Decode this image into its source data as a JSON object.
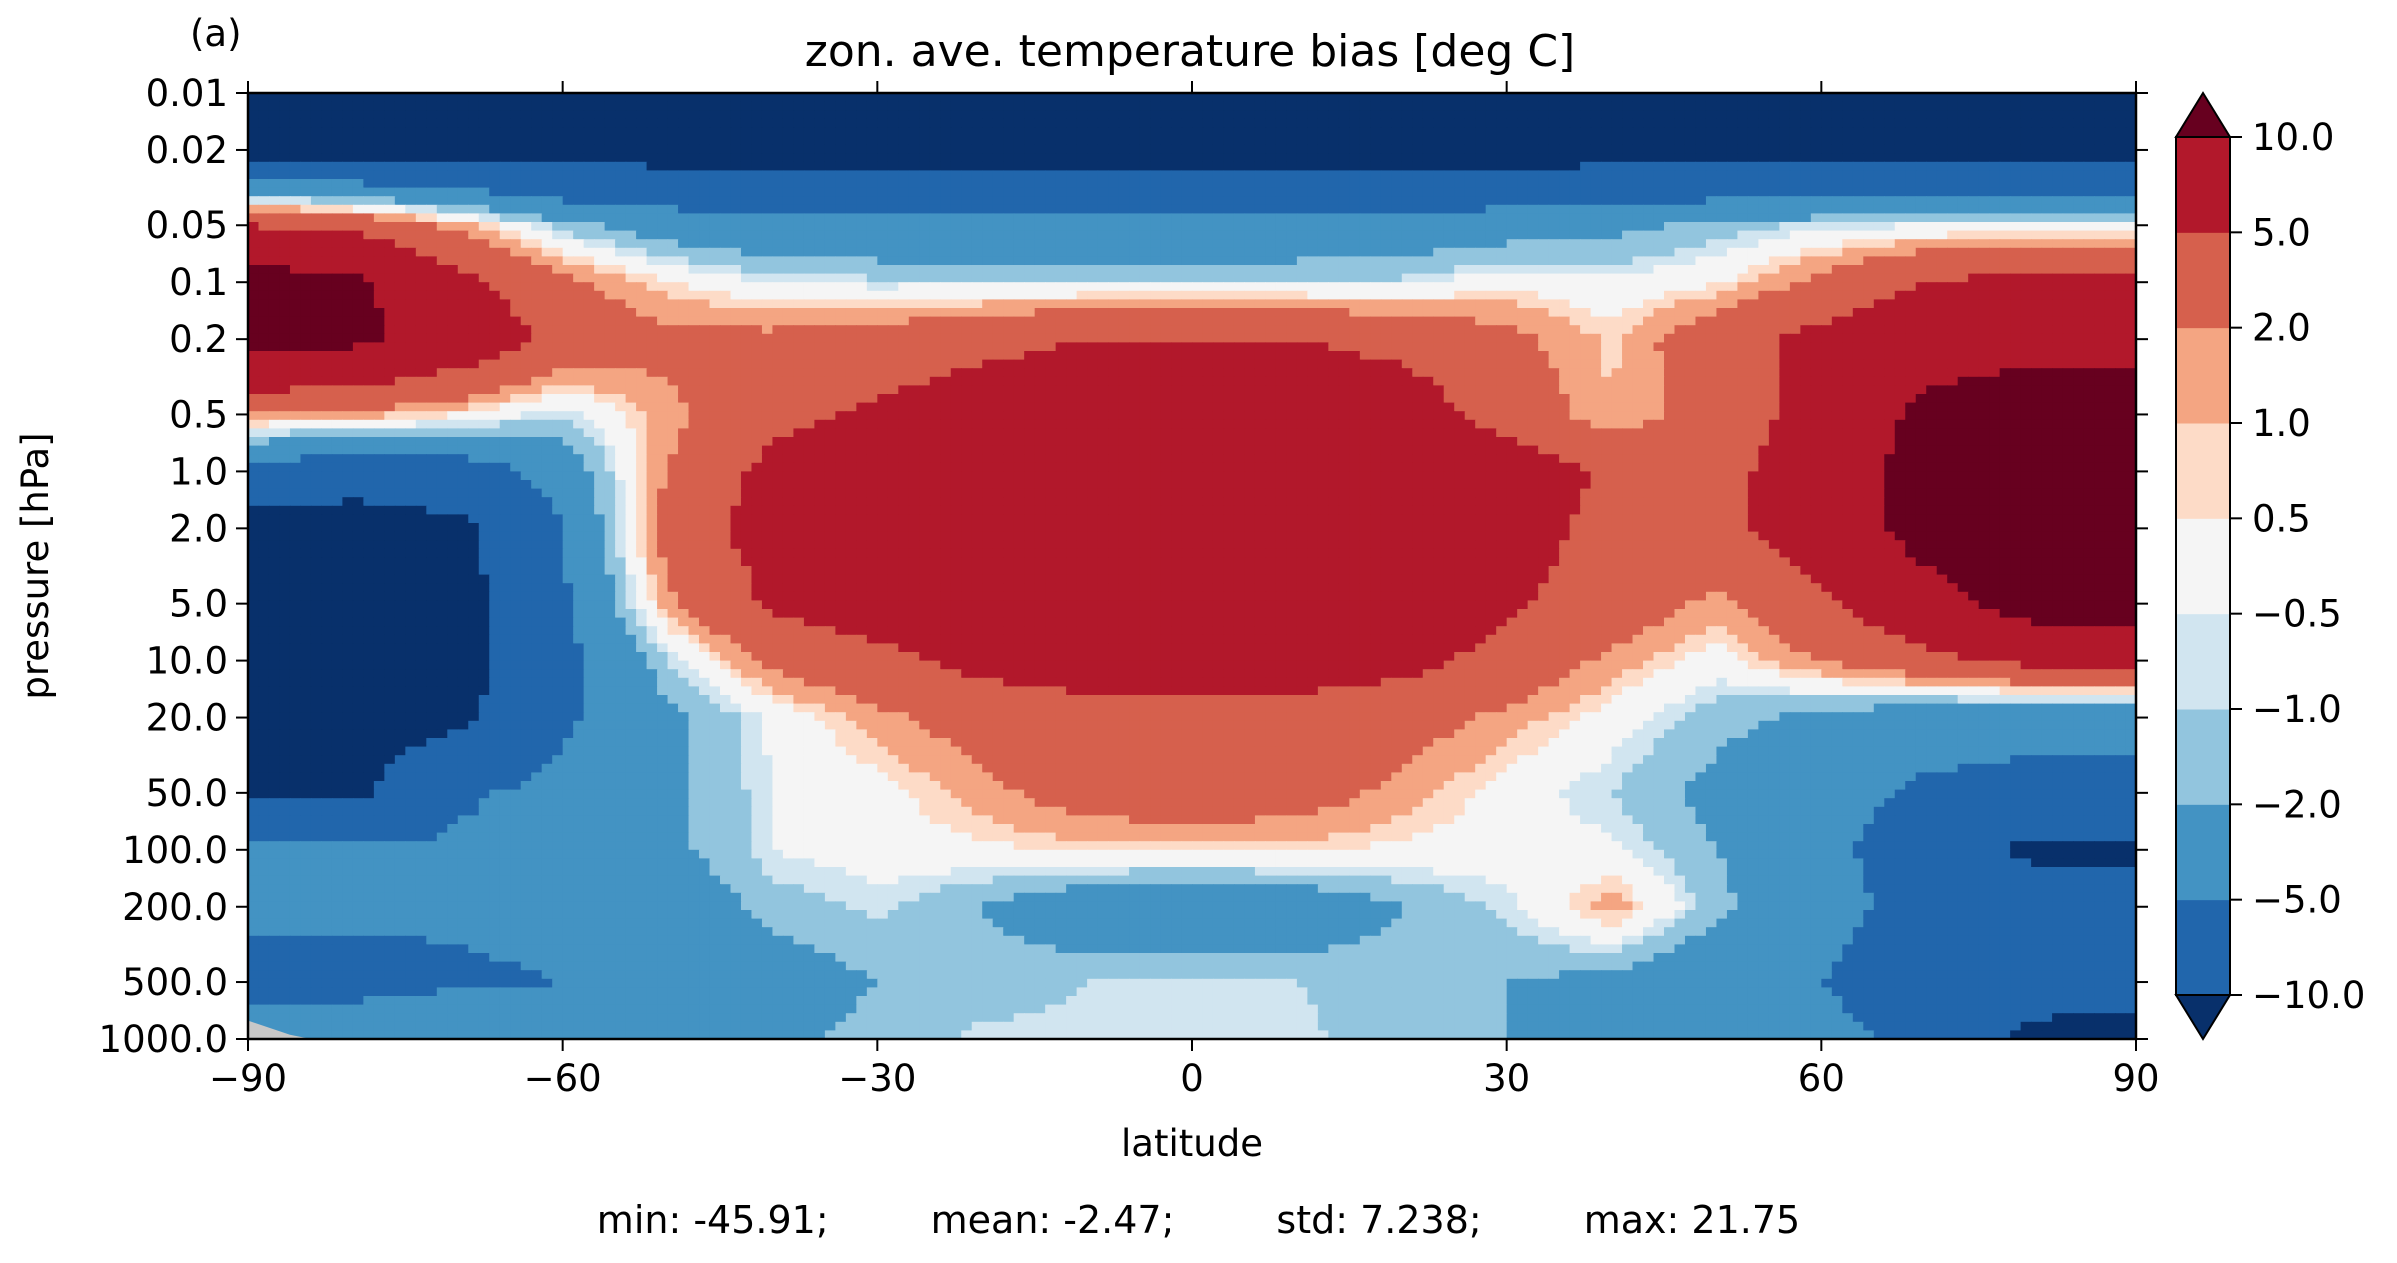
{
  "panel_label": "(a)",
  "stats": {
    "min": "min: -45.91;",
    "mean": "mean: -2.47;",
    "std": "std: 7.238;",
    "max": "max: 21.75"
  },
  "chart_data": {
    "type": "heatmap",
    "subtype": "filled-contour",
    "title": "zon. ave. temperature bias [deg C]",
    "xlabel": "latitude",
    "ylabel": "pressure [hPa]",
    "xlim": [
      -90,
      90
    ],
    "ylim": [
      1000.0,
      0.01
    ],
    "yscale": "log",
    "x_ticks": [
      "−90",
      "−60",
      "−30",
      "0",
      "30",
      "60",
      "90"
    ],
    "x_tick_values": [
      -90,
      -60,
      -30,
      0,
      30,
      60,
      90
    ],
    "y_ticks": [
      "0.01",
      "0.02",
      "0.05",
      "0.1",
      "0.2",
      "0.5",
      "1.0",
      "2.0",
      "5.0",
      "10.0",
      "20.0",
      "50.0",
      "100.0",
      "200.0",
      "500.0",
      "1000.0"
    ],
    "y_tick_values": [
      0.01,
      0.02,
      0.05,
      0.1,
      0.2,
      0.5,
      1.0,
      2.0,
      5.0,
      10.0,
      20.0,
      50.0,
      100.0,
      200.0,
      500.0,
      1000.0
    ],
    "colorbar": {
      "levels": [
        -10.0,
        -5.0,
        -2.0,
        -1.0,
        -0.5,
        0.5,
        1.0,
        2.0,
        5.0,
        10.0
      ],
      "tick_labels": [
        "−10.0",
        "−5.0",
        "−2.0",
        "−1.0",
        "−0.5",
        "0.5",
        "1.0",
        "2.0",
        "5.0",
        "10.0"
      ],
      "extend": "both",
      "colors": [
        "#08306b",
        "#2166ac",
        "#4393c3",
        "#92c5de",
        "#d1e5f0",
        "#f5f5f5",
        "#fddbc7",
        "#f4a582",
        "#d6604d",
        "#b2182b",
        "#67001f"
      ],
      "under_color": "#08306b",
      "over_color": "#67001f"
    },
    "missing_color": "#c8c8c8",
    "field_x": [
      -90,
      -80,
      -70,
      -60,
      -50,
      -40,
      -30,
      -20,
      -10,
      0,
      10,
      20,
      30,
      40,
      50,
      60,
      70,
      80,
      90
    ],
    "field_y": [
      1000.0,
      500.0,
      200.0,
      100.0,
      50.0,
      20.0,
      10.0,
      5.0,
      2.0,
      1.0,
      0.5,
      0.2,
      0.1,
      0.05,
      0.02,
      0.01
    ],
    "field_z": [
      [
        -3.5,
        -3.0,
        -2.0,
        -3.0,
        -3.0,
        -2.5,
        -1.5,
        -0.8,
        -0.8,
        -0.8,
        -0.8,
        -1.5,
        -2.0,
        -2.5,
        -3.0,
        -4.0,
        -6.0,
        -11.0,
        -12.0
      ],
      [
        -6.0,
        -6.0,
        -5.5,
        -5.0,
        -4.0,
        -3.0,
        -2.0,
        -1.5,
        -1.0,
        -0.8,
        -1.0,
        -1.5,
        -2.0,
        -2.5,
        -4.0,
        -5.0,
        -7.0,
        -8.0,
        -8.0
      ],
      [
        -4.5,
        -4.5,
        -4.5,
        -4.0,
        -3.5,
        -1.5,
        -0.8,
        -2.0,
        -3.5,
        -4.0,
        -3.5,
        -2.0,
        -0.8,
        1.5,
        -1.5,
        -4.0,
        -6.0,
        -7.0,
        -7.0
      ],
      [
        -4.5,
        -4.5,
        -4.5,
        -4.0,
        -2.5,
        -0.5,
        0.0,
        0.3,
        0.6,
        0.7,
        0.6,
        0.3,
        0.0,
        -0.3,
        -2.0,
        -4.0,
        -7.0,
        -11.0,
        -11.0
      ],
      [
        -11.0,
        -11.0,
        -5.5,
        -4.0,
        -2.5,
        -0.5,
        0.0,
        1.5,
        3.0,
        3.5,
        3.0,
        1.5,
        0.0,
        -1.0,
        -2.5,
        -4.0,
        -5.5,
        -6.0,
        -6.0
      ],
      [
        -12.0,
        -12.0,
        -11.0,
        -5.5,
        -2.5,
        -0.3,
        1.5,
        3.0,
        4.0,
        4.0,
        4.0,
        3.0,
        1.5,
        0.0,
        -1.5,
        -2.5,
        -3.5,
        -4.0,
        -4.0
      ],
      [
        -12.0,
        -12.0,
        -12.0,
        -6.0,
        -1.0,
        2.5,
        4.0,
        6.0,
        6.5,
        6.5,
        6.5,
        6.0,
        4.0,
        1.5,
        0.0,
        2.0,
        4.0,
        6.0,
        6.0
      ],
      [
        -12.0,
        -12.0,
        -12.0,
        -5.5,
        1.5,
        5.5,
        7.0,
        8.0,
        8.0,
        8.0,
        8.0,
        7.0,
        5.5,
        3.5,
        1.5,
        4.5,
        8.0,
        12.0,
        12.0
      ],
      [
        -12.0,
        -12.0,
        -11.0,
        -5.0,
        3.0,
        6.5,
        8.0,
        8.5,
        8.5,
        8.5,
        8.5,
        8.0,
        6.5,
        4.0,
        4.0,
        7.0,
        12.0,
        13.0,
        13.0
      ],
      [
        -6.0,
        -8.0,
        -7.0,
        -3.5,
        2.0,
        6.0,
        8.0,
        8.5,
        8.5,
        8.5,
        8.5,
        8.0,
        7.0,
        4.5,
        4.0,
        7.0,
        12.0,
        13.0,
        13.0
      ],
      [
        2.0,
        1.5,
        0.5,
        -1.0,
        1.5,
        4.0,
        5.5,
        7.0,
        8.0,
        8.0,
        8.0,
        7.0,
        3.5,
        1.0,
        3.0,
        6.5,
        11.0,
        12.0,
        12.0
      ],
      [
        12.0,
        11.0,
        8.0,
        4.0,
        2.5,
        2.5,
        3.0,
        4.0,
        5.0,
        5.0,
        5.0,
        4.0,
        2.5,
        0.8,
        3.5,
        6.0,
        8.0,
        9.0,
        9.0
      ],
      [
        12.0,
        11.0,
        6.0,
        2.5,
        0.5,
        -0.5,
        -0.8,
        -0.8,
        -0.8,
        -0.8,
        -0.8,
        -0.8,
        0.2,
        -0.3,
        0.3,
        2.5,
        5.0,
        6.0,
        6.0
      ],
      [
        5.0,
        4.0,
        1.5,
        -1.5,
        -3.0,
        -4.0,
        -4.0,
        -4.0,
        -4.0,
        -4.0,
        -4.0,
        -3.5,
        -3.0,
        -2.5,
        -1.5,
        -0.8,
        -0.5,
        -0.3,
        -0.3
      ],
      [
        -12.0,
        -12.0,
        -12.0,
        -12.0,
        -12.0,
        -12.0,
        -12.0,
        -12.0,
        -12.0,
        -12.0,
        -12.0,
        -12.0,
        -12.0,
        -12.0,
        -12.0,
        -12.0,
        -12.0,
        -12.0,
        -12.0
      ],
      [
        -12.0,
        -12.0,
        -12.0,
        -12.0,
        -12.0,
        -12.0,
        -12.0,
        -12.0,
        -12.0,
        -12.0,
        -12.0,
        -12.0,
        -12.0,
        -12.0,
        -12.0,
        -12.0,
        -12.0,
        -12.0,
        -12.0
      ]
    ]
  }
}
